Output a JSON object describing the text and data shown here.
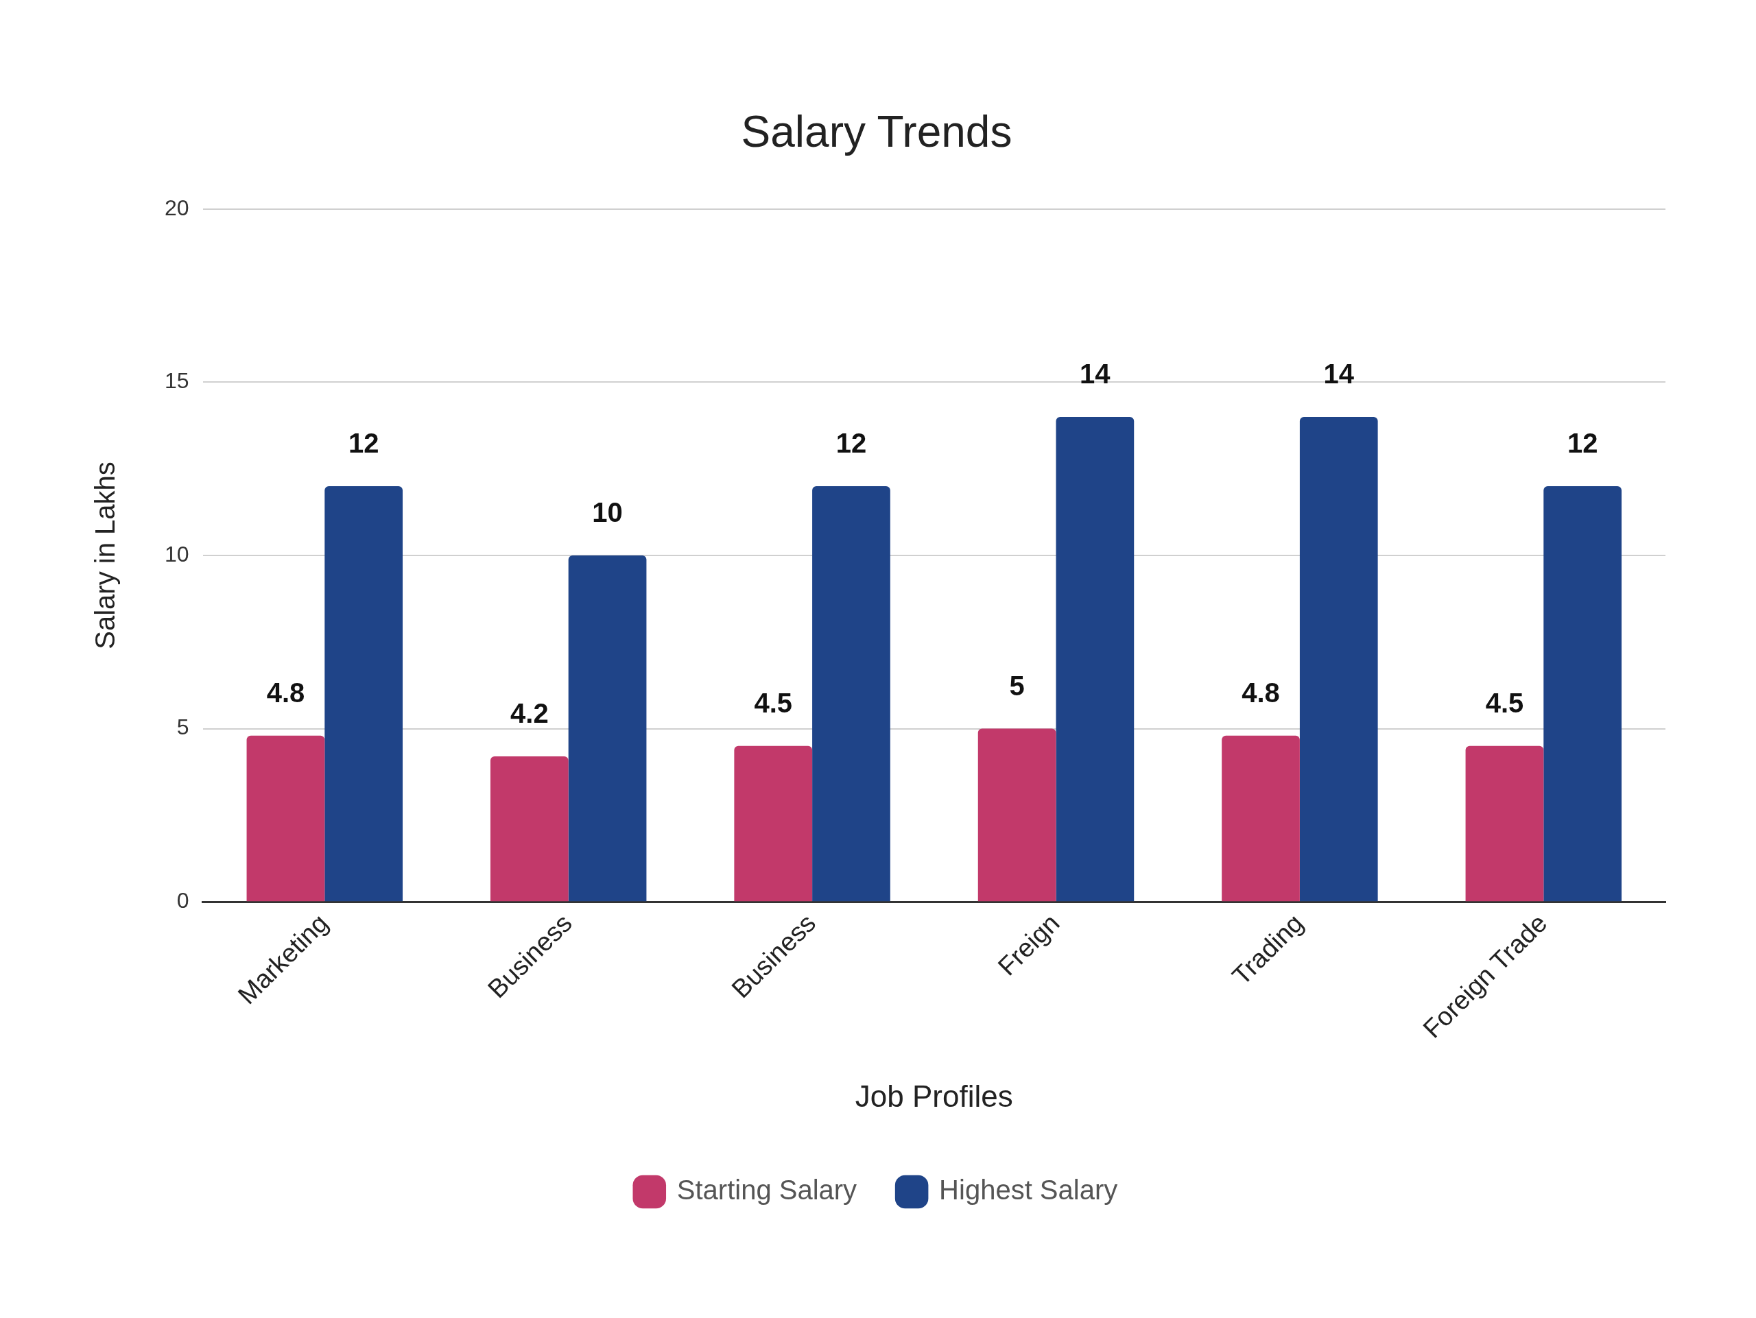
{
  "chart_data": {
    "type": "bar",
    "title": "Salary Trends",
    "xlabel": "Job Profiles",
    "ylabel": "Salary in Lakhs",
    "categories": [
      "Marketing",
      "Business",
      "Business",
      "Freign",
      "Trading",
      "Foreign Trade"
    ],
    "series": [
      {
        "name": "Starting Salary",
        "color": "#c2396a",
        "values": [
          4.8,
          4.2,
          4.5,
          5,
          4.8,
          4.5
        ]
      },
      {
        "name": "Highest Salary",
        "color": "#1f4488",
        "values": [
          12,
          10,
          12,
          14,
          14,
          12
        ]
      }
    ],
    "ylim": [
      0,
      20
    ],
    "yticks": [
      0,
      5,
      10,
      15,
      20
    ],
    "grid": "y",
    "legend": "bottom",
    "data_labels": true
  }
}
